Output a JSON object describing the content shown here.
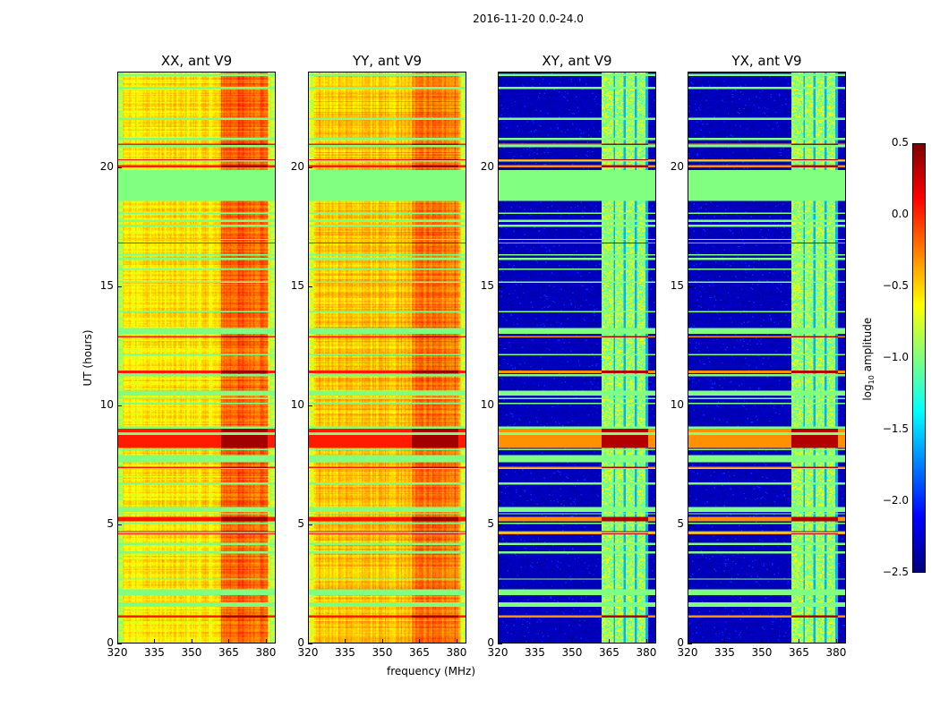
{
  "chart_data": {
    "type": "heatmap",
    "title": "2016-11-20 0.0-24.0",
    "xlabel": "frequency (MHz)",
    "ylabel": "UT (hours)",
    "xlim": [
      320,
      384
    ],
    "ylim": [
      0,
      24
    ],
    "xticks": [
      320,
      335,
      350,
      365,
      380
    ],
    "yticks": [
      0,
      5,
      10,
      15,
      20
    ],
    "colormap": "jet",
    "colorbar": {
      "label_prefix": "log",
      "label_sub": "10",
      "label_suffix": " amplitude",
      "range": [
        -2.5,
        0.5
      ],
      "ticks": [
        "0.5",
        "0.0",
        "−0.5",
        "−1.0",
        "−1.5",
        "−2.0",
        "−2.5"
      ],
      "tick_values": [
        0.5,
        0.0,
        -0.5,
        -1.0,
        -1.5,
        -2.0,
        -2.5
      ]
    },
    "panels": [
      {
        "title": "XX, ant V9",
        "kind": "parallel",
        "base_level": -0.55,
        "band_level": -0.15
      },
      {
        "title": "YY, ant V9",
        "kind": "parallel",
        "base_level": -0.45,
        "band_level": -0.2
      },
      {
        "title": "XY, ant V9",
        "kind": "cross",
        "base_level": -2.4,
        "band_level": -0.9
      },
      {
        "title": "YX, ant V9",
        "kind": "cross",
        "base_level": -2.4,
        "band_level": -0.9
      }
    ],
    "signal_band_mhz": [
      362,
      381
    ],
    "flagged_value": -1.0,
    "flagged_time_ranges_hours": [
      [
        18.6,
        19.9
      ],
      [
        13.0,
        13.25
      ],
      [
        10.4,
        10.6
      ],
      [
        7.6,
        7.9
      ],
      [
        5.5,
        5.7
      ],
      [
        2.0,
        2.25
      ],
      [
        1.5,
        1.7
      ]
    ],
    "high_amplitude_time_ranges_hours": [
      [
        8.2,
        9.0
      ],
      [
        5.1,
        5.3
      ],
      [
        20.0,
        20.1
      ],
      [
        11.35,
        11.45
      ],
      [
        4.55,
        4.7
      ],
      [
        1.05,
        1.15
      ]
    ]
  }
}
